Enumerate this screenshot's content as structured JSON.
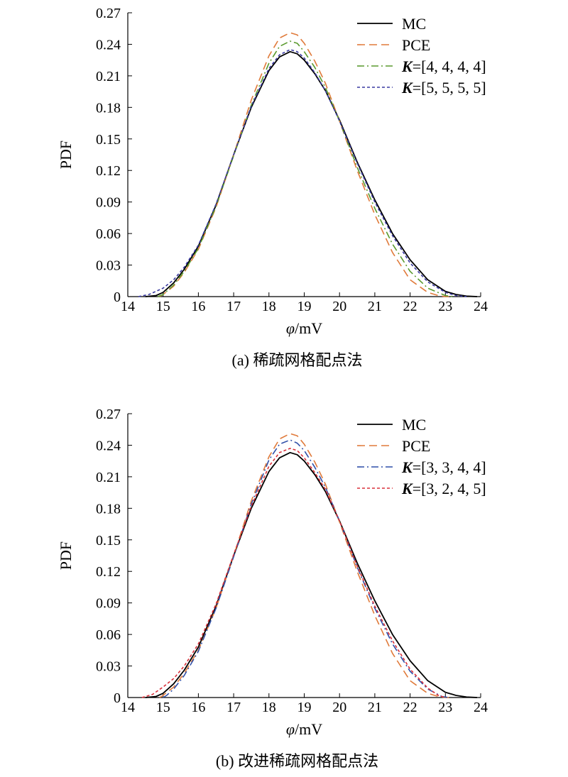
{
  "chart_data": [
    {
      "type": "line",
      "caption": "(a) 稀疏网格配点法",
      "xlabel_sym": "φ",
      "xlabel_unit": "/mV",
      "ylabel": "PDF",
      "xlim": [
        14,
        24
      ],
      "ylim": [
        0,
        0.27
      ],
      "xticks": [
        14,
        15,
        16,
        17,
        18,
        19,
        20,
        21,
        22,
        23,
        24
      ],
      "yticks": [
        "0",
        "0.03",
        "0.06",
        "0.09",
        "0.12",
        "0.15",
        "0.18",
        "0.21",
        "0.24",
        "0.27"
      ],
      "legend_position": "top-right",
      "grid": false,
      "series": [
        {
          "name": "MC",
          "color": "#000000",
          "dash": "solid",
          "x": [
            14.5,
            14.8,
            15.0,
            15.3,
            15.6,
            16.0,
            16.5,
            17.0,
            17.5,
            18.0,
            18.3,
            18.6,
            18.8,
            19.0,
            19.3,
            19.6,
            20.0,
            20.5,
            21.0,
            21.5,
            22.0,
            22.5,
            23.0,
            23.3,
            23.6,
            23.9
          ],
          "y": [
            0.0,
            0.001,
            0.004,
            0.013,
            0.026,
            0.048,
            0.087,
            0.135,
            0.18,
            0.215,
            0.228,
            0.233,
            0.231,
            0.225,
            0.212,
            0.196,
            0.168,
            0.128,
            0.092,
            0.06,
            0.035,
            0.016,
            0.005,
            0.002,
            0.0005,
            0.0
          ]
        },
        {
          "name": "PCE",
          "color": "#e07a3a",
          "dash": "dashed",
          "x": [
            14.9,
            15.0,
            15.3,
            15.6,
            16.0,
            16.5,
            17.0,
            17.5,
            18.0,
            18.3,
            18.6,
            18.8,
            19.0,
            19.3,
            19.6,
            20.0,
            20.5,
            21.0,
            21.5,
            22.0,
            22.5,
            22.8,
            23.0,
            23.1
          ],
          "y": [
            0.0,
            0.002,
            0.01,
            0.023,
            0.045,
            0.085,
            0.135,
            0.187,
            0.229,
            0.246,
            0.251,
            0.249,
            0.241,
            0.224,
            0.203,
            0.167,
            0.12,
            0.078,
            0.042,
            0.016,
            0.004,
            0.001,
            0.0,
            0.0
          ]
        },
        {
          "name": "K=[4, 4, 4, 4]",
          "bold": "K",
          "text": "=[4, 4, 4, 4]",
          "color": "#5a9a2e",
          "dash": "dashdot",
          "x": [
            14.85,
            15.0,
            15.3,
            15.6,
            16.0,
            16.5,
            17.0,
            17.5,
            18.0,
            18.3,
            18.6,
            18.8,
            19.0,
            19.3,
            19.6,
            20.0,
            20.5,
            21.0,
            21.5,
            22.0,
            22.5,
            23.0,
            23.2
          ],
          "y": [
            0.0,
            0.002,
            0.011,
            0.024,
            0.046,
            0.086,
            0.134,
            0.182,
            0.222,
            0.238,
            0.243,
            0.241,
            0.233,
            0.218,
            0.199,
            0.167,
            0.123,
            0.084,
            0.05,
            0.024,
            0.008,
            0.001,
            0.0
          ]
        },
        {
          "name": "K=[5, 5, 5, 5]",
          "bold": "K",
          "text": "=[5, 5, 5, 5]",
          "color": "#3a3aa0",
          "dash": "dotted",
          "x": [
            14.3,
            14.6,
            15.0,
            15.3,
            15.6,
            16.0,
            16.5,
            17.0,
            17.5,
            18.0,
            18.3,
            18.6,
            18.8,
            19.0,
            19.3,
            19.6,
            20.0,
            20.5,
            21.0,
            21.5,
            22.0,
            22.5,
            23.0,
            23.3,
            23.6
          ],
          "y": [
            0.0,
            0.002,
            0.008,
            0.016,
            0.028,
            0.049,
            0.088,
            0.135,
            0.181,
            0.217,
            0.23,
            0.235,
            0.233,
            0.227,
            0.213,
            0.196,
            0.167,
            0.127,
            0.09,
            0.058,
            0.032,
            0.014,
            0.004,
            0.001,
            0.0
          ]
        }
      ]
    },
    {
      "type": "line",
      "caption": "(b) 改进稀疏网格配点法",
      "xlabel_sym": "φ",
      "xlabel_unit": "/mV",
      "ylabel": "PDF",
      "xlim": [
        14,
        24
      ],
      "ylim": [
        0,
        0.27
      ],
      "xticks": [
        14,
        15,
        16,
        17,
        18,
        19,
        20,
        21,
        22,
        23,
        24
      ],
      "yticks": [
        "0",
        "0.03",
        "0.06",
        "0.09",
        "0.12",
        "0.15",
        "0.18",
        "0.21",
        "0.24",
        "0.27"
      ],
      "legend_position": "top-right",
      "grid": false,
      "series": [
        {
          "name": "MC",
          "color": "#000000",
          "dash": "solid",
          "x": [
            14.5,
            14.8,
            15.0,
            15.3,
            15.6,
            16.0,
            16.5,
            17.0,
            17.5,
            18.0,
            18.3,
            18.6,
            18.8,
            19.0,
            19.3,
            19.6,
            20.0,
            20.5,
            21.0,
            21.5,
            22.0,
            22.5,
            23.0,
            23.3,
            23.6,
            23.9
          ],
          "y": [
            0.0,
            0.001,
            0.004,
            0.013,
            0.026,
            0.048,
            0.087,
            0.135,
            0.18,
            0.215,
            0.228,
            0.233,
            0.231,
            0.225,
            0.212,
            0.196,
            0.168,
            0.128,
            0.092,
            0.06,
            0.035,
            0.016,
            0.005,
            0.002,
            0.0005,
            0.0
          ]
        },
        {
          "name": "PCE",
          "color": "#e07a3a",
          "dash": "dashed",
          "x": [
            14.9,
            15.0,
            15.3,
            15.6,
            16.0,
            16.5,
            17.0,
            17.5,
            18.0,
            18.3,
            18.6,
            18.8,
            19.0,
            19.3,
            19.6,
            20.0,
            20.5,
            21.0,
            21.5,
            22.0,
            22.5,
            22.8,
            23.0,
            23.1
          ],
          "y": [
            0.0,
            0.002,
            0.01,
            0.023,
            0.045,
            0.085,
            0.135,
            0.187,
            0.229,
            0.246,
            0.251,
            0.249,
            0.241,
            0.224,
            0.203,
            0.167,
            0.12,
            0.078,
            0.042,
            0.016,
            0.004,
            0.001,
            0.0,
            0.0
          ]
        },
        {
          "name": "K=[3, 3, 4, 4]",
          "bold": "K",
          "text": "=[3, 3, 4, 4]",
          "color": "#2f4fa8",
          "dash": "dashdot",
          "x": [
            15.0,
            15.1,
            15.3,
            15.6,
            16.0,
            16.5,
            17.0,
            17.5,
            18.0,
            18.3,
            18.6,
            18.8,
            19.0,
            19.3,
            19.6,
            20.0,
            20.5,
            21.0,
            21.5,
            22.0,
            22.5,
            22.9,
            23.1
          ],
          "y": [
            0.0,
            0.002,
            0.008,
            0.021,
            0.044,
            0.085,
            0.134,
            0.184,
            0.226,
            0.241,
            0.245,
            0.242,
            0.235,
            0.219,
            0.2,
            0.168,
            0.124,
            0.085,
            0.051,
            0.025,
            0.008,
            0.001,
            0.0
          ]
        },
        {
          "name": "K=[3, 2, 4, 5]",
          "bold": "K",
          "text": "=[3, 2, 4, 5]",
          "color": "#d9303a",
          "dash": "dotted",
          "x": [
            14.4,
            14.7,
            15.0,
            15.3,
            15.6,
            16.0,
            16.5,
            17.0,
            17.5,
            18.0,
            18.3,
            18.6,
            18.8,
            19.0,
            19.3,
            19.6,
            20.0,
            20.5,
            21.0,
            21.5,
            22.0,
            22.5,
            22.8,
            23.0
          ],
          "y": [
            0.0,
            0.003,
            0.01,
            0.018,
            0.03,
            0.051,
            0.089,
            0.136,
            0.182,
            0.22,
            0.233,
            0.237,
            0.235,
            0.228,
            0.214,
            0.198,
            0.168,
            0.125,
            0.087,
            0.054,
            0.027,
            0.009,
            0.002,
            0.0
          ]
        }
      ]
    }
  ]
}
